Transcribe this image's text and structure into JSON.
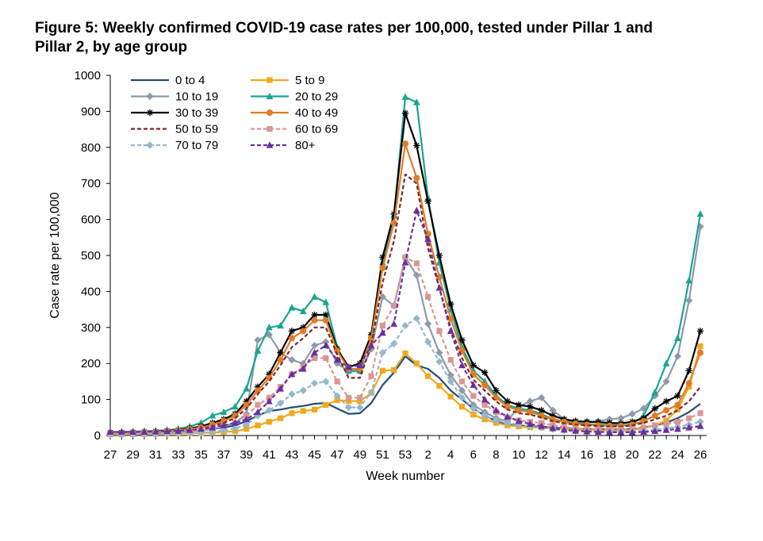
{
  "figure_title": "Figure 5: Weekly confirmed COVID-19 case rates per 100,000, tested under Pillar 1 and Pillar 2, by age group",
  "chart_data": {
    "type": "line",
    "xlabel": "Week number",
    "ylabel": "Case rate per 100,000",
    "ylim": [
      0,
      1000
    ],
    "yticks": [
      0,
      100,
      200,
      300,
      400,
      500,
      600,
      700,
      800,
      900,
      1000
    ],
    "x": [
      27,
      28,
      29,
      30,
      31,
      32,
      33,
      34,
      35,
      36,
      37,
      38,
      39,
      40,
      41,
      42,
      43,
      44,
      45,
      46,
      47,
      48,
      49,
      50,
      51,
      52,
      53,
      1,
      2,
      3,
      4,
      5,
      6,
      7,
      8,
      9,
      10,
      11,
      12,
      13,
      14,
      15,
      16,
      17,
      18,
      19,
      20,
      21,
      22,
      23,
      24,
      25,
      26
    ],
    "x_tick_labels": [
      "27",
      "29",
      "31",
      "33",
      "35",
      "37",
      "39",
      "41",
      "43",
      "45",
      "47",
      "49",
      "51",
      "53",
      "2",
      "4",
      "6",
      "8",
      "10",
      "12",
      "14",
      "16",
      "18",
      "20",
      "22",
      "24",
      "26"
    ],
    "grid": false,
    "legend_position": "top-left",
    "series": [
      {
        "name": "0 to 4",
        "color": "#1f4e79",
        "dash": "solid",
        "marker": "none",
        "values": [
          5,
          5,
          6,
          6,
          7,
          8,
          10,
          12,
          14,
          18,
          22,
          28,
          40,
          55,
          68,
          72,
          78,
          82,
          88,
          90,
          75,
          60,
          62,
          90,
          140,
          175,
          220,
          195,
          185,
          160,
          125,
          100,
          75,
          55,
          40,
          30,
          28,
          26,
          24,
          22,
          20,
          18,
          18,
          18,
          17,
          17,
          18,
          22,
          28,
          36,
          48,
          65,
          88
        ]
      },
      {
        "name": "5 to 9",
        "color": "#f0a81c",
        "dash": "solid",
        "marker": "square",
        "values": [
          3,
          3,
          3,
          4,
          4,
          5,
          5,
          6,
          7,
          8,
          10,
          12,
          18,
          28,
          38,
          48,
          62,
          68,
          72,
          85,
          98,
          96,
          95,
          118,
          180,
          182,
          228,
          200,
          165,
          138,
          108,
          80,
          58,
          45,
          35,
          28,
          25,
          23,
          22,
          20,
          18,
          16,
          15,
          15,
          14,
          14,
          15,
          20,
          28,
          42,
          72,
          135,
          248
        ]
      },
      {
        "name": "10 to 19",
        "color": "#8e9aaa",
        "dash": "solid",
        "marker": "diamond",
        "values": [
          5,
          5,
          6,
          6,
          7,
          8,
          10,
          12,
          14,
          18,
          25,
          35,
          60,
          265,
          280,
          230,
          210,
          200,
          250,
          260,
          200,
          178,
          178,
          240,
          385,
          360,
          495,
          445,
          310,
          230,
          168,
          125,
          85,
          65,
          48,
          40,
          80,
          95,
          105,
          70,
          45,
          38,
          38,
          40,
          45,
          48,
          60,
          75,
          110,
          150,
          220,
          375,
          580
        ]
      },
      {
        "name": "20 to 29",
        "color": "#1aa58e",
        "dash": "solid",
        "marker": "triangle",
        "values": [
          10,
          10,
          11,
          12,
          13,
          15,
          18,
          25,
          35,
          55,
          65,
          80,
          130,
          235,
          300,
          305,
          355,
          345,
          385,
          370,
          245,
          180,
          180,
          280,
          480,
          610,
          940,
          925,
          660,
          480,
          350,
          245,
          180,
          150,
          110,
          85,
          75,
          70,
          60,
          45,
          40,
          35,
          32,
          30,
          30,
          28,
          32,
          55,
          120,
          200,
          270,
          430,
          615
        ]
      },
      {
        "name": "30 to 39",
        "color": "#000000",
        "dash": "solid",
        "marker": "star",
        "values": [
          8,
          8,
          9,
          10,
          11,
          13,
          15,
          20,
          25,
          35,
          45,
          60,
          95,
          135,
          170,
          230,
          290,
          300,
          335,
          335,
          240,
          190,
          200,
          280,
          495,
          615,
          895,
          805,
          650,
          500,
          365,
          265,
          195,
          175,
          125,
          95,
          85,
          80,
          70,
          55,
          45,
          40,
          38,
          37,
          35,
          34,
          38,
          48,
          75,
          95,
          110,
          180,
          290
        ]
      },
      {
        "name": "40 to 49",
        "color": "#e07b26",
        "dash": "solid",
        "marker": "circle",
        "values": [
          7,
          7,
          8,
          9,
          10,
          12,
          14,
          18,
          22,
          30,
          40,
          55,
          85,
          125,
          160,
          210,
          270,
          290,
          320,
          320,
          235,
          185,
          185,
          270,
          465,
          590,
          810,
          715,
          560,
          440,
          325,
          235,
          170,
          140,
          105,
          80,
          70,
          65,
          55,
          45,
          38,
          33,
          30,
          28,
          27,
          27,
          30,
          40,
          55,
          70,
          85,
          145,
          230
        ]
      },
      {
        "name": "50 to 59",
        "color": "#7b2a27",
        "dash": "dashed",
        "marker": "none",
        "values": [
          6,
          6,
          7,
          8,
          9,
          10,
          12,
          15,
          18,
          25,
          35,
          48,
          75,
          115,
          150,
          195,
          245,
          270,
          300,
          300,
          225,
          160,
          160,
          250,
          425,
          540,
          725,
          700,
          520,
          410,
          300,
          215,
          155,
          125,
          95,
          72,
          62,
          58,
          50,
          40,
          34,
          30,
          28,
          26,
          25,
          25,
          28,
          35,
          45,
          55,
          70,
          95,
          135
        ]
      },
      {
        "name": "60 to 69",
        "color": "#d99694",
        "dash": "dashed",
        "marker": "square",
        "values": [
          5,
          5,
          5,
          6,
          7,
          8,
          9,
          11,
          14,
          18,
          25,
          35,
          55,
          85,
          105,
          135,
          170,
          190,
          215,
          215,
          150,
          105,
          105,
          165,
          305,
          360,
          495,
          478,
          385,
          290,
          210,
          150,
          110,
          85,
          65,
          50,
          42,
          38,
          35,
          28,
          24,
          20,
          18,
          17,
          16,
          16,
          18,
          22,
          28,
          32,
          38,
          48,
          62
        ]
      },
      {
        "name": "70 to 79",
        "color": "#93b7cc",
        "dash": "dashed",
        "marker": "diamond",
        "values": [
          3,
          3,
          3,
          4,
          4,
          5,
          6,
          7,
          8,
          10,
          14,
          20,
          30,
          55,
          70,
          90,
          115,
          125,
          145,
          150,
          110,
          78,
          78,
          120,
          230,
          255,
          305,
          325,
          260,
          205,
          150,
          105,
          75,
          55,
          42,
          35,
          30,
          26,
          22,
          17,
          14,
          12,
          11,
          10,
          10,
          10,
          11,
          13,
          16,
          20,
          24,
          30,
          38
        ]
      },
      {
        "name": "80+",
        "color": "#6b2fa0",
        "dash": "dashed",
        "marker": "triangle",
        "values": [
          10,
          10,
          10,
          10,
          11,
          12,
          13,
          15,
          18,
          22,
          28,
          35,
          45,
          65,
          95,
          130,
          170,
          185,
          230,
          250,
          210,
          190,
          195,
          250,
          285,
          310,
          480,
          625,
          545,
          410,
          290,
          195,
          140,
          100,
          70,
          52,
          40,
          32,
          26,
          20,
          16,
          13,
          11,
          10,
          9,
          9,
          9,
          10,
          12,
          15,
          18,
          22,
          26
        ]
      }
    ]
  }
}
